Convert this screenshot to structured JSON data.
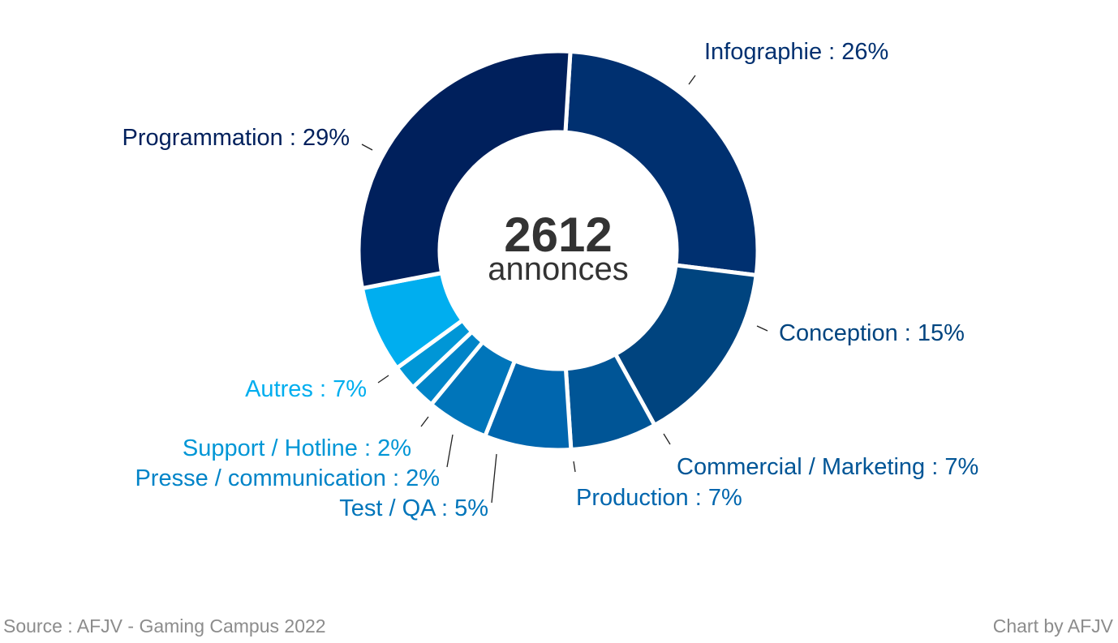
{
  "chart_data": {
    "type": "pie",
    "variant": "donut",
    "center": {
      "value": "2612",
      "label": "annonces"
    },
    "slices": [
      {
        "name": "Infographie",
        "label": "Infographie : 26%",
        "value": 26,
        "color": "#003070",
        "label_color": "#003070"
      },
      {
        "name": "Conception",
        "label": "Conception : 15%",
        "value": 15,
        "color": "#00447f",
        "label_color": "#00447f"
      },
      {
        "name": "Commercial / Marketing",
        "label": "Commercial / Marketing : 7%",
        "value": 7,
        "color": "#005596",
        "label_color": "#005596"
      },
      {
        "name": "Production",
        "label": "Production : 7%",
        "value": 7,
        "color": "#0066ae",
        "label_color": "#0066ae"
      },
      {
        "name": "Test / QA",
        "label": "Test / QA : 5%",
        "value": 5,
        "color": "#0075ba",
        "label_color": "#0075ba"
      },
      {
        "name": "Presse / communication",
        "label": "Presse / communication : 2%",
        "value": 2,
        "color": "#0084c8",
        "label_color": "#0084c8"
      },
      {
        "name": "Support / Hotline",
        "label": "Support / Hotline : 2%",
        "value": 2,
        "color": "#0096d6",
        "label_color": "#0096d6"
      },
      {
        "name": "Autres",
        "label": "Autres : 7%",
        "value": 7,
        "color": "#00aeef",
        "label_color": "#00aeef"
      },
      {
        "name": "Programmation",
        "label": "Programmation : 29%",
        "value": 29,
        "color": "#00205c",
        "label_color": "#00205c"
      }
    ],
    "label_style": "outside with leader lines"
  },
  "footer": {
    "source": "Source : AFJV - Gaming Campus 2022",
    "credit": "Chart by AFJV"
  }
}
